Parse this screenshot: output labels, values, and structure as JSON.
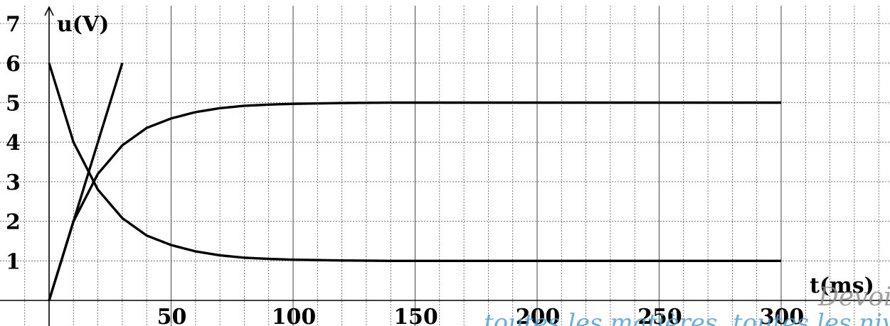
{
  "chart_data": {
    "type": "line",
    "xlabel": "t(ms)",
    "ylabel": "u(V)",
    "xlim": [
      0,
      300
    ],
    "ylim": [
      0,
      7
    ],
    "x_ticks": [
      50,
      100,
      150,
      200,
      250,
      300
    ],
    "y_ticks": [
      1,
      2,
      3,
      4,
      5,
      6,
      7
    ],
    "grid": true,
    "series": [
      {
        "x": [
          0,
          10,
          20,
          30,
          40,
          50,
          60,
          70,
          80,
          90,
          100,
          120,
          140,
          160,
          200,
          250,
          300
        ],
        "y": [
          0,
          2.0,
          3.2,
          3.92,
          4.36,
          4.6,
          4.76,
          4.86,
          4.92,
          4.95,
          4.97,
          4.99,
          5.0,
          5.0,
          5.0,
          5.0,
          5.0
        ]
      },
      {
        "x": [
          0,
          10,
          20,
          30,
          40,
          50,
          60,
          70,
          80,
          90,
          100,
          120,
          140,
          160,
          200,
          250,
          300
        ],
        "y": [
          6.0,
          4.0,
          2.8,
          2.08,
          1.64,
          1.4,
          1.24,
          1.14,
          1.08,
          1.05,
          1.03,
          1.01,
          1.0,
          1.0,
          1.0,
          1.0,
          1.0
        ]
      },
      {
        "x": [
          0,
          30
        ],
        "y": [
          0,
          6
        ]
      }
    ]
  },
  "watermark": {
    "line1": "Devoi",
    "line2": "toutes les matières, toutes les nive"
  }
}
